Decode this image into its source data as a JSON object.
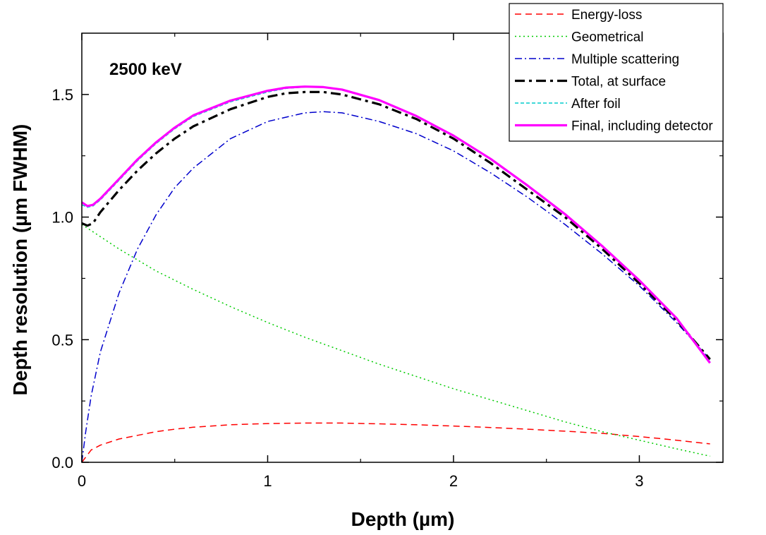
{
  "chart_data": {
    "type": "line",
    "title": "",
    "annotation": "2500 keV",
    "xlabel": "Depth (µm)",
    "ylabel": "Depth resolution (µm FWHM)",
    "xlim": [
      0,
      3.45
    ],
    "ylim": [
      0,
      1.75
    ],
    "xticks": [
      0,
      1,
      2,
      3
    ],
    "xtick_labels": [
      "0",
      "1",
      "2",
      "3"
    ],
    "yticks": [
      0.0,
      0.5,
      1.0,
      1.5
    ],
    "ytick_labels": [
      "0.0",
      "0.5",
      "1.0",
      "1.5"
    ],
    "grid": false,
    "legend_position": "top-right",
    "series": [
      {
        "name": "Energy-loss",
        "color": "#ff0000",
        "style": "dashed",
        "x": [
          0.0,
          0.05,
          0.1,
          0.2,
          0.3,
          0.4,
          0.5,
          0.6,
          0.8,
          1.0,
          1.2,
          1.4,
          1.6,
          1.8,
          2.0,
          2.2,
          2.4,
          2.6,
          2.8,
          3.0,
          3.2,
          3.38
        ],
        "y": [
          0.0,
          0.05,
          0.07,
          0.095,
          0.11,
          0.125,
          0.135,
          0.143,
          0.153,
          0.158,
          0.16,
          0.16,
          0.157,
          0.153,
          0.148,
          0.142,
          0.135,
          0.127,
          0.118,
          0.105,
          0.09,
          0.075
        ]
      },
      {
        "name": "Geometrical",
        "color": "#00cc00",
        "style": "dotted",
        "x": [
          0.0,
          0.2,
          0.4,
          0.6,
          0.8,
          1.0,
          1.2,
          1.4,
          1.6,
          1.8,
          2.0,
          2.2,
          2.4,
          2.6,
          2.8,
          3.0,
          3.2,
          3.38
        ],
        "y": [
          0.97,
          0.87,
          0.78,
          0.705,
          0.635,
          0.57,
          0.51,
          0.455,
          0.4,
          0.35,
          0.3,
          0.255,
          0.21,
          0.165,
          0.125,
          0.09,
          0.055,
          0.025
        ]
      },
      {
        "name": "Multiple scattering",
        "color": "#0000cc",
        "style": "dashdot",
        "x": [
          0.0,
          0.02,
          0.05,
          0.1,
          0.2,
          0.3,
          0.4,
          0.5,
          0.6,
          0.8,
          1.0,
          1.2,
          1.3,
          1.4,
          1.6,
          1.8,
          2.0,
          2.2,
          2.4,
          2.6,
          2.8,
          3.0,
          3.2,
          3.38
        ],
        "y": [
          0.0,
          0.12,
          0.27,
          0.45,
          0.69,
          0.87,
          1.01,
          1.12,
          1.2,
          1.32,
          1.39,
          1.425,
          1.43,
          1.425,
          1.39,
          1.34,
          1.27,
          1.18,
          1.08,
          0.97,
          0.85,
          0.72,
          0.57,
          0.42
        ]
      },
      {
        "name": "Total, at surface",
        "color": "#000000",
        "style": "dashdot-thick",
        "x": [
          0.0,
          0.03,
          0.06,
          0.1,
          0.2,
          0.3,
          0.4,
          0.5,
          0.6,
          0.8,
          1.0,
          1.1,
          1.2,
          1.3,
          1.4,
          1.6,
          1.8,
          2.0,
          2.2,
          2.4,
          2.6,
          2.8,
          3.0,
          3.2,
          3.38
        ],
        "y": [
          0.975,
          0.965,
          0.975,
          1.02,
          1.11,
          1.19,
          1.26,
          1.32,
          1.37,
          1.44,
          1.49,
          1.505,
          1.51,
          1.51,
          1.5,
          1.46,
          1.4,
          1.32,
          1.22,
          1.11,
          1.0,
          0.87,
          0.73,
          0.58,
          0.42
        ]
      },
      {
        "name": "After foil",
        "color": "#00cccc",
        "style": "dashed-fine",
        "x": [
          0.0,
          0.03,
          0.06,
          0.1,
          0.2,
          0.3,
          0.4,
          0.5,
          0.6,
          0.8,
          1.0,
          1.1,
          1.2,
          1.3,
          1.4,
          1.6,
          1.8,
          2.0,
          2.2,
          2.4,
          2.6,
          2.8,
          3.0,
          3.2,
          3.38
        ],
        "y": [
          1.05,
          1.04,
          1.045,
          1.07,
          1.15,
          1.23,
          1.3,
          1.36,
          1.41,
          1.47,
          1.51,
          1.525,
          1.53,
          1.53,
          1.52,
          1.475,
          1.41,
          1.33,
          1.235,
          1.125,
          1.01,
          0.88,
          0.74,
          0.585,
          0.41
        ]
      },
      {
        "name": "Final, including detector",
        "color": "#ff00ff",
        "style": "solid",
        "x": [
          0.0,
          0.03,
          0.06,
          0.1,
          0.2,
          0.3,
          0.4,
          0.5,
          0.6,
          0.8,
          1.0,
          1.1,
          1.2,
          1.3,
          1.4,
          1.6,
          1.8,
          2.0,
          2.2,
          2.4,
          2.6,
          2.8,
          3.0,
          3.2,
          3.38
        ],
        "y": [
          1.06,
          1.045,
          1.05,
          1.075,
          1.155,
          1.235,
          1.305,
          1.365,
          1.415,
          1.475,
          1.515,
          1.528,
          1.532,
          1.53,
          1.52,
          1.477,
          1.412,
          1.332,
          1.237,
          1.128,
          1.012,
          0.882,
          0.742,
          0.588,
          0.405
        ]
      }
    ]
  }
}
